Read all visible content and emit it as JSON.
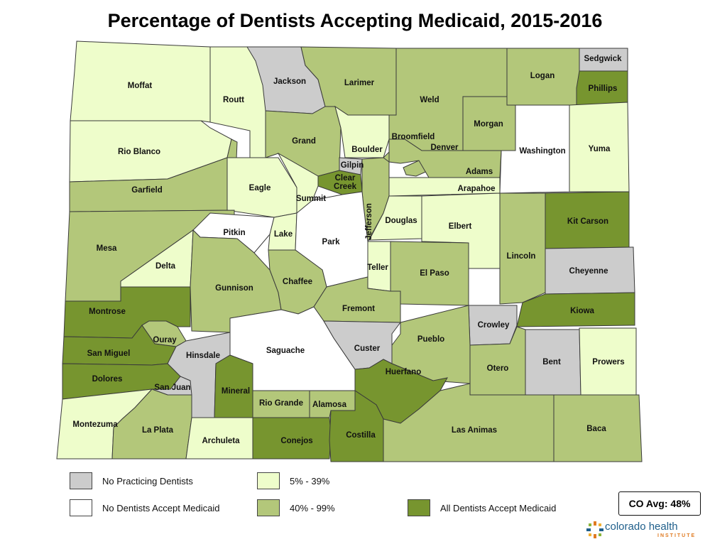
{
  "title": "Percentage of Dentists Accepting Medicaid, 2015-2016",
  "colors": {
    "no_dentists": "#cccccc",
    "none_accept": "#ffffff",
    "low": "#eefdcb",
    "mid": "#b3c77a",
    "all": "#77952f",
    "border": "#3a3a3a"
  },
  "legend": [
    {
      "key": "no_dentists",
      "label": "No Practicing Dentists"
    },
    {
      "key": "none_accept",
      "label": "No Dentists Accept Medicaid"
    },
    {
      "key": "low",
      "label": "5% - 39%"
    },
    {
      "key": "mid",
      "label": "40% - 99%"
    },
    {
      "key": "all",
      "label": "All Dentists Accept Medicaid"
    }
  ],
  "average": "CO Avg: 48%",
  "logo": {
    "name": "colorado health",
    "sub": "INSTITUTE",
    "icon": "sunburst-logo-icon"
  },
  "counties": [
    {
      "name": "Moffat",
      "cat": "low"
    },
    {
      "name": "Routt",
      "cat": "low"
    },
    {
      "name": "Jackson",
      "cat": "no_dentists"
    },
    {
      "name": "Larimer",
      "cat": "mid"
    },
    {
      "name": "Weld",
      "cat": "mid"
    },
    {
      "name": "Logan",
      "cat": "mid"
    },
    {
      "name": "Sedgwick",
      "cat": "no_dentists"
    },
    {
      "name": "Phillips",
      "cat": "all"
    },
    {
      "name": "Rio Blanco",
      "cat": "low"
    },
    {
      "name": "Grand",
      "cat": "mid"
    },
    {
      "name": "Boulder",
      "cat": "low"
    },
    {
      "name": "Broomfield",
      "cat": "mid"
    },
    {
      "name": "Morgan",
      "cat": "mid"
    },
    {
      "name": "Washington",
      "cat": "none_accept"
    },
    {
      "name": "Yuma",
      "cat": "low"
    },
    {
      "name": "Garfield",
      "cat": "mid"
    },
    {
      "name": "Eagle",
      "cat": "low"
    },
    {
      "name": "Gilpin",
      "cat": "no_dentists"
    },
    {
      "name": "Clear Creek",
      "cat": "all"
    },
    {
      "name": "Denver",
      "cat": "mid"
    },
    {
      "name": "Adams",
      "cat": "mid"
    },
    {
      "name": "Arapahoe",
      "cat": "low"
    },
    {
      "name": "Summit",
      "cat": "low"
    },
    {
      "name": "Jefferson",
      "cat": "mid"
    },
    {
      "name": "Douglas",
      "cat": "low"
    },
    {
      "name": "Elbert",
      "cat": "low"
    },
    {
      "name": "Kit Carson",
      "cat": "all"
    },
    {
      "name": "Mesa",
      "cat": "mid"
    },
    {
      "name": "Pitkin",
      "cat": "none_accept"
    },
    {
      "name": "Lake",
      "cat": "low"
    },
    {
      "name": "Park",
      "cat": "none_accept"
    },
    {
      "name": "Delta",
      "cat": "low"
    },
    {
      "name": "Lincoln",
      "cat": "mid"
    },
    {
      "name": "Cheyenne",
      "cat": "no_dentists"
    },
    {
      "name": "Teller",
      "cat": "low"
    },
    {
      "name": "El Paso",
      "cat": "mid"
    },
    {
      "name": "Gunnison",
      "cat": "mid"
    },
    {
      "name": "Chaffee",
      "cat": "mid"
    },
    {
      "name": "Montrose",
      "cat": "all"
    },
    {
      "name": "Fremont",
      "cat": "mid"
    },
    {
      "name": "Kiowa",
      "cat": "all"
    },
    {
      "name": "Crowley",
      "cat": "no_dentists"
    },
    {
      "name": "Ouray",
      "cat": "mid"
    },
    {
      "name": "Pueblo",
      "cat": "mid"
    },
    {
      "name": "San Miguel",
      "cat": "all"
    },
    {
      "name": "Hinsdale",
      "cat": "no_dentists"
    },
    {
      "name": "Saguache",
      "cat": "none_accept"
    },
    {
      "name": "Custer",
      "cat": "no_dentists"
    },
    {
      "name": "Bent",
      "cat": "no_dentists"
    },
    {
      "name": "Prowers",
      "cat": "low"
    },
    {
      "name": "Otero",
      "cat": "mid"
    },
    {
      "name": "Dolores",
      "cat": "all"
    },
    {
      "name": "San Juan",
      "cat": "no_dentists"
    },
    {
      "name": "Mineral",
      "cat": "all"
    },
    {
      "name": "Huerfano",
      "cat": "all"
    },
    {
      "name": "Rio Grande",
      "cat": "mid"
    },
    {
      "name": "Alamosa",
      "cat": "mid"
    },
    {
      "name": "Montezuma",
      "cat": "low"
    },
    {
      "name": "La Plata",
      "cat": "mid"
    },
    {
      "name": "Las Animas",
      "cat": "mid"
    },
    {
      "name": "Baca",
      "cat": "mid"
    },
    {
      "name": "Archuleta",
      "cat": "low"
    },
    {
      "name": "Conejos",
      "cat": "all"
    },
    {
      "name": "Costilla",
      "cat": "all"
    }
  ]
}
